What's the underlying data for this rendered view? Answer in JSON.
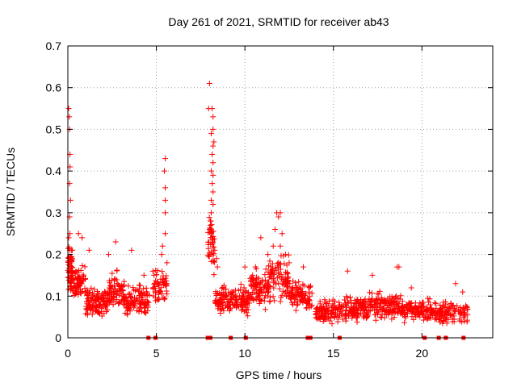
{
  "chart_data": {
    "type": "scatter",
    "title": "Day 261 of 2021, SRMTID for receiver ab43",
    "xlabel": "GPS time / hours",
    "ylabel": "SRMTID / TECUs",
    "xlim": [
      0,
      24
    ],
    "ylim": [
      0,
      0.7
    ],
    "xticks": [
      0,
      5,
      10,
      15,
      20
    ],
    "yticks": [
      0,
      0.1,
      0.2,
      0.3,
      0.4,
      0.5,
      0.6,
      0.7
    ],
    "ytick_labels": [
      "0",
      "0.1",
      "0.2",
      "0.3",
      "0.4",
      "0.5",
      "0.6",
      "0.7"
    ],
    "xtick_labels": [
      "0",
      "5",
      "10",
      "15",
      "20"
    ],
    "grid": true,
    "marker": "+",
    "color": "#ff0000",
    "series": [
      {
        "name": "SRMTID",
        "clusters": [
          {
            "x_range": [
              0.0,
              0.3
            ],
            "base": 0.16,
            "spread": 0.06,
            "count": 60
          },
          {
            "x_range": [
              0.3,
              1.0
            ],
            "base": 0.13,
            "spread": 0.05,
            "count": 70
          },
          {
            "x_range": [
              1.0,
              2.3
            ],
            "base": 0.085,
            "spread": 0.04,
            "count": 120
          },
          {
            "x_range": [
              2.3,
              3.2
            ],
            "base": 0.11,
            "spread": 0.05,
            "count": 80
          },
          {
            "x_range": [
              3.2,
              4.6
            ],
            "base": 0.09,
            "spread": 0.04,
            "count": 110
          },
          {
            "x_range": [
              4.8,
              5.6
            ],
            "base": 0.13,
            "spread": 0.06,
            "count": 60
          },
          {
            "x_range": [
              7.9,
              8.3
            ],
            "base": 0.22,
            "spread": 0.08,
            "count": 40
          },
          {
            "x_range": [
              8.3,
              9.3
            ],
            "base": 0.09,
            "spread": 0.04,
            "count": 80
          },
          {
            "x_range": [
              9.3,
              10.3
            ],
            "base": 0.09,
            "spread": 0.04,
            "count": 80
          },
          {
            "x_range": [
              10.3,
              11.3
            ],
            "base": 0.12,
            "spread": 0.05,
            "count": 90
          },
          {
            "x_range": [
              11.3,
              12.5
            ],
            "base": 0.14,
            "spread": 0.06,
            "count": 100
          },
          {
            "x_range": [
              12.5,
              13.8
            ],
            "base": 0.1,
            "spread": 0.04,
            "count": 100
          },
          {
            "x_range": [
              14.0,
              15.5
            ],
            "base": 0.065,
            "spread": 0.03,
            "count": 110
          },
          {
            "x_range": [
              15.5,
              17.0
            ],
            "base": 0.07,
            "spread": 0.035,
            "count": 120
          },
          {
            "x_range": [
              17.0,
              18.8
            ],
            "base": 0.075,
            "spread": 0.035,
            "count": 130
          },
          {
            "x_range": [
              18.8,
              20.5
            ],
            "base": 0.065,
            "spread": 0.03,
            "count": 120
          },
          {
            "x_range": [
              20.5,
              22.6
            ],
            "base": 0.06,
            "spread": 0.03,
            "count": 130
          }
        ],
        "peaks": [
          [
            0.05,
            0.55
          ],
          [
            0.08,
            0.53
          ],
          [
            0.1,
            0.5
          ],
          [
            0.12,
            0.44
          ],
          [
            0.12,
            0.41
          ],
          [
            0.1,
            0.37
          ],
          [
            0.15,
            0.33
          ],
          [
            0.1,
            0.29
          ],
          [
            0.12,
            0.25
          ],
          [
            0.05,
            0.24
          ],
          [
            0.2,
            0.21
          ],
          [
            0.25,
            0.19
          ],
          [
            0.6,
            0.25
          ],
          [
            0.8,
            0.24
          ],
          [
            1.2,
            0.21
          ],
          [
            2.7,
            0.23
          ],
          [
            2.3,
            0.2
          ],
          [
            3.6,
            0.21
          ],
          [
            4.3,
            0.15
          ],
          [
            5.5,
            0.43
          ],
          [
            5.45,
            0.4
          ],
          [
            5.5,
            0.36
          ],
          [
            5.5,
            0.33
          ],
          [
            5.5,
            0.3
          ],
          [
            5.5,
            0.25
          ],
          [
            5.35,
            0.22
          ],
          [
            5.3,
            0.2
          ],
          [
            5.6,
            0.18
          ],
          [
            8.0,
            0.61
          ],
          [
            7.95,
            0.55
          ],
          [
            8.15,
            0.55
          ],
          [
            8.2,
            0.53
          ],
          [
            8.2,
            0.5
          ],
          [
            8.1,
            0.49
          ],
          [
            8.25,
            0.47
          ],
          [
            8.2,
            0.46
          ],
          [
            8.15,
            0.44
          ],
          [
            8.2,
            0.42
          ],
          [
            8.1,
            0.4
          ],
          [
            8.2,
            0.39
          ],
          [
            8.15,
            0.37
          ],
          [
            8.2,
            0.35
          ],
          [
            8.1,
            0.33
          ],
          [
            8.2,
            0.32
          ],
          [
            8.1,
            0.3
          ],
          [
            8.05,
            0.28
          ],
          [
            8.0,
            0.26
          ],
          [
            8.1,
            0.25
          ],
          [
            8.15,
            0.24
          ],
          [
            8.2,
            0.23
          ],
          [
            8.3,
            0.21
          ],
          [
            8.4,
            0.19
          ],
          [
            8.45,
            0.17
          ],
          [
            10.0,
            0.17
          ],
          [
            10.6,
            0.17
          ],
          [
            10.9,
            0.24
          ],
          [
            11.3,
            0.2
          ],
          [
            11.8,
            0.3
          ],
          [
            11.9,
            0.29
          ],
          [
            12.0,
            0.3
          ],
          [
            11.7,
            0.26
          ],
          [
            12.1,
            0.25
          ],
          [
            11.6,
            0.22
          ],
          [
            12.0,
            0.22
          ],
          [
            12.3,
            0.2
          ],
          [
            11.9,
            0.18
          ],
          [
            12.5,
            0.18
          ],
          [
            13.3,
            0.17
          ],
          [
            15.8,
            0.16
          ],
          [
            17.2,
            0.15
          ],
          [
            18.6,
            0.17
          ],
          [
            18.7,
            0.17
          ],
          [
            19.4,
            0.12
          ],
          [
            21.9,
            0.13
          ],
          [
            22.3,
            0.11
          ]
        ]
      }
    ],
    "baseline_markers_x": [
      4.55,
      4.95,
      7.9,
      8.05,
      9.2,
      10.05,
      13.55,
      13.7,
      15.35,
      20.15,
      20.95,
      21.35,
      22.35
    ]
  }
}
